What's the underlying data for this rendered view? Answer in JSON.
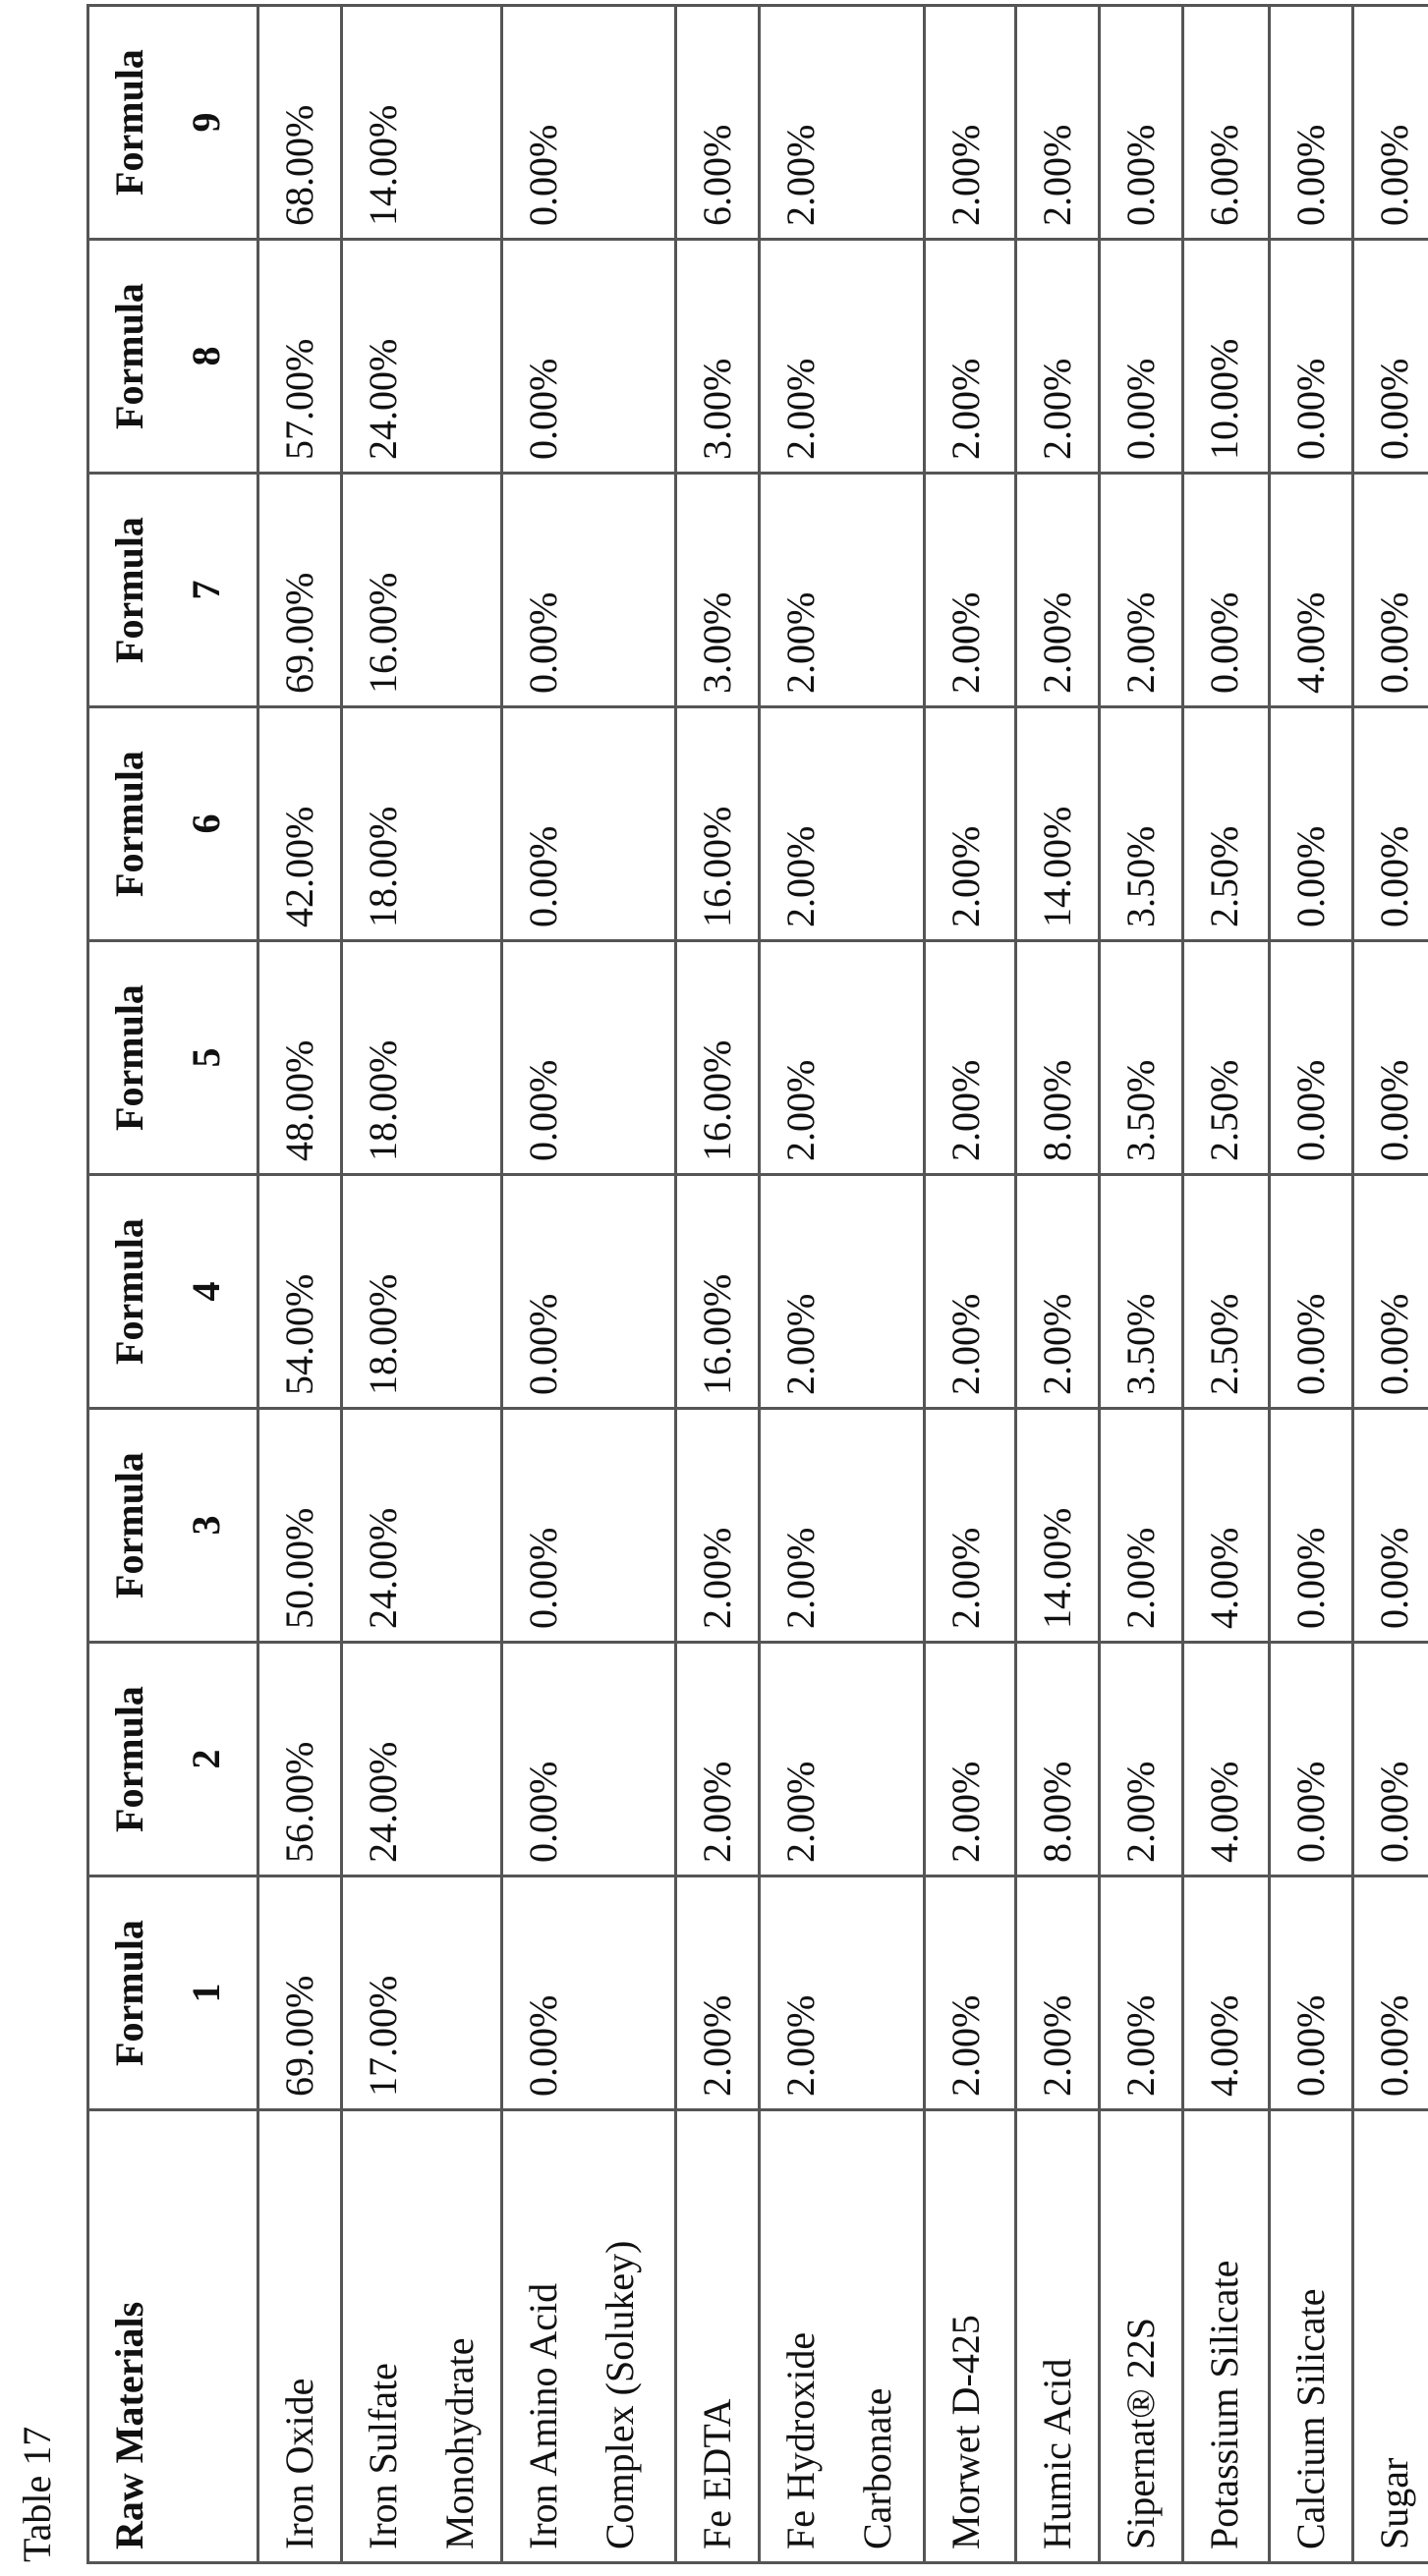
{
  "caption": "Table 17",
  "header": {
    "raw_materials": "Raw Materials",
    "formulas": [
      "Formula\n1",
      "Formula\n2",
      "Formula\n3",
      "Formula\n4",
      "Formula\n5",
      "Formula\n6",
      "Formula\n7",
      "Formula\n8",
      "Formula\n9"
    ]
  },
  "rows": [
    {
      "name": "Iron Oxide",
      "values": [
        "69.00%",
        "56.00%",
        "50.00%",
        "54.00%",
        "48.00%",
        "42.00%",
        "69.00%",
        "57.00%",
        "68.00%"
      ]
    },
    {
      "name": "Iron Sulfate\nMonohydrate",
      "values": [
        "17.00%",
        "24.00%",
        "24.00%",
        "18.00%",
        "18.00%",
        "18.00%",
        "16.00%",
        "24.00%",
        "14.00%"
      ]
    },
    {
      "name": "Iron Amino Acid\nComplex (Solukey)",
      "values": [
        "0.00%",
        "0.00%",
        "0.00%",
        "0.00%",
        "0.00%",
        "0.00%",
        "0.00%",
        "0.00%",
        "0.00%"
      ]
    },
    {
      "name": "Fe EDTA",
      "values": [
        "2.00%",
        "2.00%",
        "2.00%",
        "16.00%",
        "16.00%",
        "16.00%",
        "3.00%",
        "3.00%",
        "6.00%"
      ]
    },
    {
      "name": "Fe Hydroxide\nCarbonate",
      "values": [
        "2.00%",
        "2.00%",
        "2.00%",
        "2.00%",
        "2.00%",
        "2.00%",
        "2.00%",
        "2.00%",
        "2.00%"
      ]
    },
    {
      "name": "Morwet D-425",
      "values": [
        "2.00%",
        "2.00%",
        "2.00%",
        "2.00%",
        "2.00%",
        "2.00%",
        "2.00%",
        "2.00%",
        "2.00%"
      ]
    },
    {
      "name": "Humic Acid",
      "values": [
        "2.00%",
        "8.00%",
        "14.00%",
        "2.00%",
        "8.00%",
        "14.00%",
        "2.00%",
        "2.00%",
        "2.00%"
      ]
    },
    {
      "name": "Sipernat® 22S",
      "values": [
        "2.00%",
        "2.00%",
        "2.00%",
        "3.50%",
        "3.50%",
        "3.50%",
        "2.00%",
        "0.00%",
        "0.00%"
      ]
    },
    {
      "name": "Potassium Silicate",
      "values": [
        "4.00%",
        "4.00%",
        "4.00%",
        "2.50%",
        "2.50%",
        "2.50%",
        "0.00%",
        "10.00%",
        "6.00%"
      ]
    },
    {
      "name": "Calcium Silicate",
      "values": [
        "0.00%",
        "0.00%",
        "0.00%",
        "0.00%",
        "0.00%",
        "0.00%",
        "4.00%",
        "0.00%",
        "0.00%"
      ]
    },
    {
      "name": "Sugar",
      "values": [
        "0.00%",
        "0.00%",
        "0.00%",
        "0.00%",
        "0.00%",
        "0.00%",
        "0.00%",
        "0.00%",
        "0.00%"
      ]
    }
  ]
}
